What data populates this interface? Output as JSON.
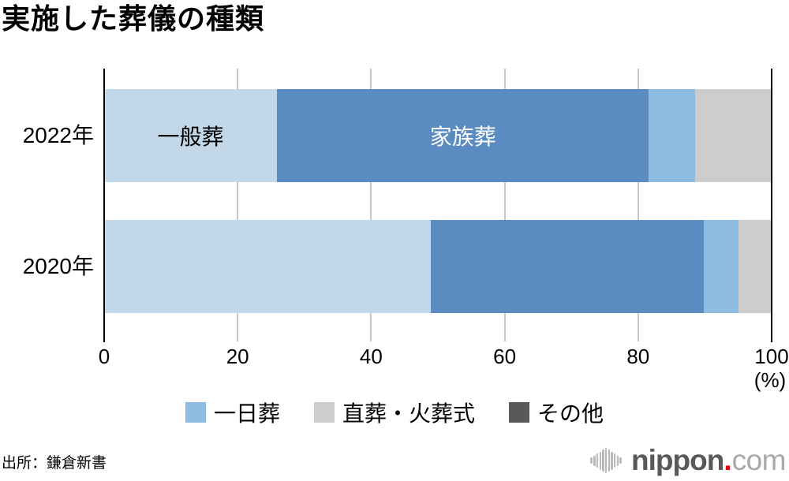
{
  "title": "実施した葬儀の種類",
  "source": "出所：鎌倉新書",
  "axis": {
    "ticks": [
      0,
      20,
      40,
      60,
      80,
      100
    ],
    "unit_label": "(%)"
  },
  "colors": {
    "ippanso": "#c2d8e9",
    "kazokuso": "#5b8cc1",
    "ichinichiso": "#8ebbe2",
    "chokuso": "#cdcdcd",
    "sonota": "#595959",
    "gridline": "#c8c8c8",
    "axis_line": "#000000"
  },
  "chart_data": {
    "type": "bar",
    "orientation": "horizontal",
    "stacked": true,
    "unit": "%",
    "xlim": [
      0,
      100
    ],
    "grid": "vertical",
    "legend_position": "bottom",
    "categories": [
      "2022年",
      "2020年"
    ],
    "series": [
      {
        "key": "ippanso",
        "name": "一般葬",
        "color_key": "ippanso",
        "values": [
          25.9,
          48.9
        ],
        "label_rows": [
          0
        ],
        "label_color": "#000000"
      },
      {
        "key": "kazokuso",
        "name": "家族葬",
        "color_key": "kazokuso",
        "values": [
          55.7,
          40.9
        ],
        "label_rows": [
          0
        ],
        "label_color": "#ffffff"
      },
      {
        "key": "ichinichiso",
        "name": "一日葬",
        "color_key": "ichinichiso",
        "values": [
          6.9,
          5.2
        ],
        "label_rows": []
      },
      {
        "key": "chokuso-kasoshiki",
        "name": "直葬・火葬式",
        "color_key": "chokuso",
        "values": [
          11.4,
          4.9
        ],
        "label_rows": []
      },
      {
        "key": "sonota",
        "name": "その他",
        "color_key": "sonota",
        "values": [
          0.1,
          0.1
        ],
        "label_rows": []
      }
    ]
  },
  "legend": {
    "items": [
      {
        "key": "ichinichiso",
        "label": "一日葬",
        "color_key": "ichinichiso"
      },
      {
        "key": "chokuso-kasoshiki",
        "label": "直葬・火葬式",
        "color_key": "chokuso"
      },
      {
        "key": "sonota",
        "label": "その他",
        "color_key": "sonota"
      }
    ]
  },
  "logo": {
    "name": "nippon.com",
    "text_bold": "nippon",
    "dot": ".",
    "text_light": "com"
  }
}
